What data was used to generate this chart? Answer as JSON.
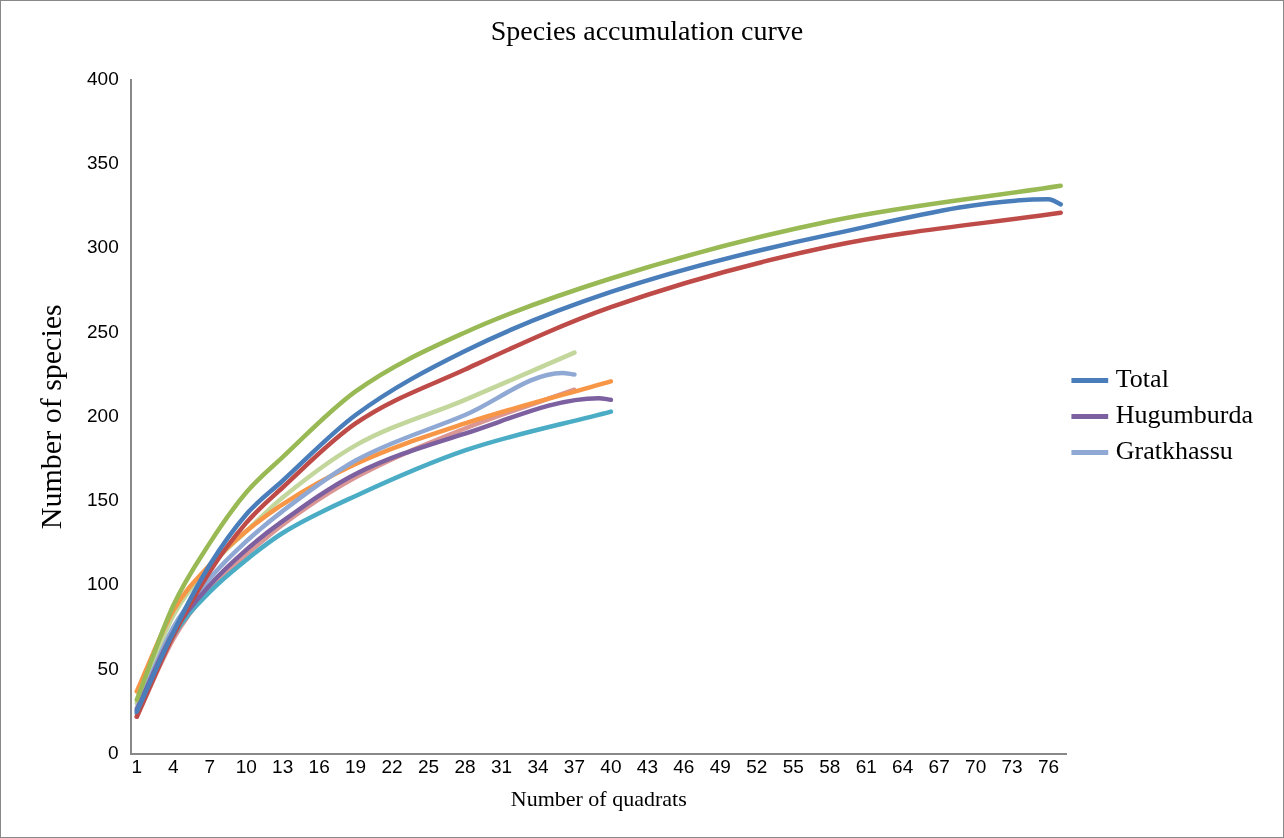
{
  "chart_data": {
    "type": "line",
    "title": "Species accumulation curve",
    "xlabel": "Number of quadrats",
    "ylabel": "Number of species",
    "xlim": [
      0.5,
      77.5
    ],
    "xticks": [
      1,
      4,
      7,
      10,
      13,
      16,
      19,
      22,
      25,
      28,
      31,
      34,
      37,
      40,
      43,
      46,
      49,
      52,
      55,
      58,
      61,
      64,
      67,
      70,
      73,
      76
    ],
    "ylim": [
      0,
      400
    ],
    "yticks": [
      0,
      50,
      100,
      150,
      200,
      250,
      300,
      350,
      400
    ],
    "legend": "right",
    "marker": "none",
    "line_style": "solid",
    "series": [
      {
        "name": "Total",
        "color": "#4a7ebb",
        "x": [
          1,
          4,
          7,
          10,
          13,
          19,
          28,
          40,
          58,
          76,
          77
        ],
        "values": [
          25,
          72,
          112,
          142,
          162,
          201,
          239,
          274,
          308,
          329,
          326
        ]
      },
      {
        "color": "#be4b48",
        "x": [
          1,
          4,
          7,
          10,
          13,
          19,
          28,
          40,
          58,
          77
        ],
        "values": [
          22,
          70,
          108,
          137,
          158,
          196,
          228,
          265,
          301,
          321
        ]
      },
      {
        "color": "#98b954",
        "x": [
          1,
          4,
          7,
          10,
          13,
          19,
          28,
          40,
          58,
          77
        ],
        "values": [
          32,
          88,
          125,
          155,
          176,
          215,
          250,
          282,
          316,
          337
        ]
      },
      {
        "name": "Hugumburda",
        "color": "#7d60a0",
        "x": [
          1,
          4,
          7,
          10,
          13,
          19,
          28,
          39,
          40
        ],
        "values": [
          26,
          72,
          100,
          121,
          138,
          166,
          190,
          211,
          210
        ]
      },
      {
        "name": "Gratkhassu",
        "color": "#8fa9d4",
        "x": [
          1,
          4,
          7,
          10,
          13,
          19,
          28,
          36,
          37
        ],
        "values": [
          27,
          75,
          104,
          126,
          144,
          174,
          201,
          226,
          225
        ]
      },
      {
        "color": "#f79646",
        "x": [
          1,
          4,
          7,
          10,
          13,
          19,
          28,
          40
        ],
        "values": [
          37,
          85,
          112,
          132,
          148,
          172,
          196,
          221
        ]
      },
      {
        "color": "#4bacc6",
        "x": [
          1,
          4,
          7,
          10,
          13,
          19,
          28,
          40
        ],
        "values": [
          24,
          70,
          96,
          115,
          131,
          153,
          180,
          203
        ]
      },
      {
        "color": "#c3d69b",
        "x": [
          1,
          4,
          7,
          10,
          13,
          19,
          28,
          37
        ],
        "values": [
          30,
          82,
          111,
          132,
          152,
          183,
          210,
          238
        ]
      },
      {
        "color": "#d99694",
        "x": [
          1,
          4,
          7,
          10,
          13,
          19,
          28,
          37
        ],
        "values": [
          22,
          68,
          98,
          118,
          136,
          164,
          193,
          216
        ]
      }
    ]
  }
}
